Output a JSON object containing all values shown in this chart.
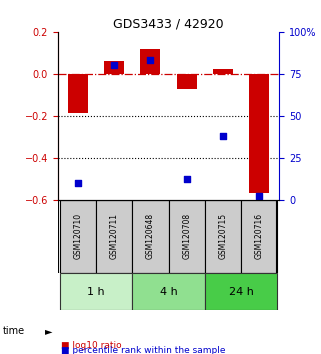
{
  "title": "GDS3433 / 42920",
  "samples": [
    "GSM120710",
    "GSM120711",
    "GSM120648",
    "GSM120708",
    "GSM120715",
    "GSM120716"
  ],
  "log10_ratio": [
    -0.185,
    0.062,
    0.118,
    -0.072,
    0.022,
    -0.57
  ],
  "percentile_rank": [
    10,
    80,
    83,
    12,
    38,
    2
  ],
  "ylim_left": [
    -0.6,
    0.2
  ],
  "ylim_right": [
    0,
    100
  ],
  "yticks_left": [
    -0.6,
    -0.4,
    -0.2,
    0.0,
    0.2
  ],
  "yticks_right": [
    0,
    25,
    50,
    75,
    100
  ],
  "ytick_labels_right": [
    "0",
    "25",
    "50",
    "75",
    "100%"
  ],
  "time_groups": [
    {
      "label": "1 h",
      "start": 0,
      "end": 2,
      "color": "#c8f0c8"
    },
    {
      "label": "4 h",
      "start": 2,
      "end": 4,
      "color": "#90e090"
    },
    {
      "label": "24 h",
      "start": 4,
      "end": 6,
      "color": "#48cc48"
    }
  ],
  "bar_color": "#cc0000",
  "square_color": "#0000cc",
  "bar_width": 0.55,
  "zero_line_color": "#cc0000",
  "zero_line_style": "-.",
  "dotted_line_color": "#000000",
  "dotted_line_style": ":",
  "sample_box_color": "#cccccc",
  "legend_bar_label": "log10 ratio",
  "legend_square_label": "percentile rank within the sample",
  "time_label": "time"
}
